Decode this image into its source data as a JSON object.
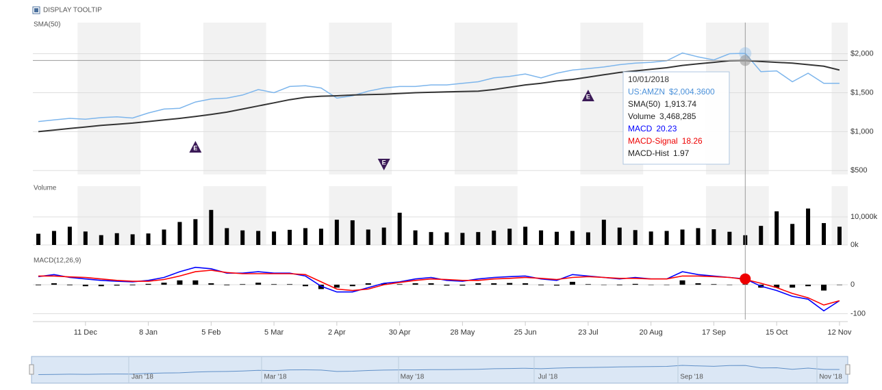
{
  "toolbar": {
    "checkbox_label": "DISPLAY TOOLTIP"
  },
  "chart_data": [
    {
      "type": "line",
      "title": "SMA(50)",
      "ylim": [
        450,
        2400
      ],
      "yticks": [
        {
          "value": 500,
          "label": "$500"
        },
        {
          "value": 1000,
          "label": "$1,000"
        },
        {
          "value": 1500,
          "label": "$1,500"
        },
        {
          "value": 2000,
          "label": "$2,000"
        }
      ],
      "grid": true,
      "annotations": [
        "E",
        "E",
        "E"
      ],
      "series": [
        {
          "name": "US:AMZN",
          "color": "#7cb5ec",
          "values": [
            1130,
            1150,
            1170,
            1160,
            1180,
            1190,
            1175,
            1240,
            1290,
            1300,
            1380,
            1420,
            1430,
            1470,
            1540,
            1500,
            1580,
            1590,
            1560,
            1430,
            1460,
            1520,
            1560,
            1580,
            1580,
            1600,
            1600,
            1620,
            1640,
            1690,
            1710,
            1740,
            1690,
            1750,
            1790,
            1810,
            1830,
            1860,
            1880,
            1890,
            1910,
            2010,
            1960,
            1920,
            2000,
            2004.36,
            1770,
            1780,
            1640,
            1750,
            1620,
            1620
          ]
        },
        {
          "name": "SMA(50)",
          "color": "#333333",
          "values": [
            1000,
            1020,
            1040,
            1060,
            1080,
            1095,
            1110,
            1130,
            1150,
            1170,
            1195,
            1220,
            1250,
            1290,
            1330,
            1370,
            1410,
            1440,
            1455,
            1460,
            1470,
            1475,
            1480,
            1490,
            1500,
            1505,
            1510,
            1515,
            1520,
            1540,
            1570,
            1600,
            1620,
            1650,
            1670,
            1700,
            1730,
            1760,
            1780,
            1800,
            1820,
            1850,
            1870,
            1890,
            1910,
            1913.74,
            1900,
            1890,
            1880,
            1860,
            1840,
            1790
          ]
        }
      ]
    },
    {
      "type": "bar",
      "title": "Volume",
      "ylim": [
        0,
        21000
      ],
      "yticks": [
        {
          "value": 0,
          "label": "0k"
        },
        {
          "value": 10000,
          "label": "10,000k"
        }
      ],
      "grid": true,
      "series": [
        {
          "name": "Volume",
          "color": "#000000",
          "values": [
            4000,
            5000,
            6500,
            4800,
            3500,
            4200,
            3800,
            4100,
            5500,
            8200,
            9200,
            12500,
            6000,
            5200,
            5000,
            4800,
            5400,
            6000,
            5800,
            9000,
            8800,
            5500,
            6200,
            11500,
            5200,
            4600,
            4500,
            4300,
            4600,
            5100,
            5800,
            6500,
            5200,
            4700,
            5000,
            4500,
            9000,
            6200,
            5300,
            4800,
            5000,
            5500,
            6000,
            5600,
            4700,
            3468.285,
            6800,
            12000,
            7500,
            13000,
            7800,
            6500
          ]
        }
      ]
    },
    {
      "type": "macd",
      "title": "MACD(12,26,9)",
      "ylim": [
        -120,
        90
      ],
      "yticks": [
        -100,
        0
      ],
      "grid": true,
      "categories": [
        null,
        null,
        null,
        "11 Dec",
        null,
        null,
        null,
        "8 Jan",
        null,
        null,
        null,
        "5 Feb",
        null,
        null,
        null,
        "5 Mar",
        null,
        null,
        null,
        "2 Apr",
        null,
        null,
        null,
        "30 Apr",
        null,
        null,
        null,
        "28 May",
        null,
        null,
        null,
        "25 Jun",
        null,
        null,
        null,
        "23 Jul",
        null,
        null,
        null,
        "20 Aug",
        null,
        null,
        null,
        "17 Sep",
        null,
        null,
        null,
        "15 Oct",
        null,
        null,
        null,
        "12 Nov"
      ],
      "series": [
        {
          "name": "MACD",
          "color": "#0000ff",
          "values": [
            28,
            35,
            25,
            20,
            15,
            12,
            10,
            15,
            25,
            45,
            60,
            55,
            40,
            40,
            45,
            40,
            40,
            30,
            -5,
            -25,
            -25,
            -10,
            5,
            10,
            20,
            25,
            15,
            12,
            20,
            25,
            28,
            30,
            20,
            15,
            35,
            30,
            25,
            20,
            25,
            20,
            20,
            45,
            35,
            30,
            25,
            20.23,
            -5,
            -20,
            -40,
            -50,
            -90,
            -55
          ]
        },
        {
          "name": "MACD-Signal",
          "color": "#ff0000",
          "values": [
            30,
            30,
            27,
            25,
            20,
            15,
            12,
            12,
            18,
            30,
            45,
            50,
            42,
            38,
            38,
            38,
            38,
            35,
            10,
            -15,
            -20,
            -15,
            0,
            8,
            15,
            20,
            18,
            15,
            15,
            20,
            22,
            25,
            22,
            18,
            25,
            28,
            25,
            22,
            22,
            20,
            20,
            30,
            30,
            28,
            25,
            18.26,
            5,
            -10,
            -30,
            -45,
            -70,
            -55
          ]
        },
        {
          "name": "MACD-Hist",
          "color": "#000000",
          "values": [
            -2,
            5,
            -2,
            -5,
            -5,
            -3,
            -2,
            3,
            7,
            15,
            15,
            5,
            -2,
            2,
            7,
            2,
            2,
            -5,
            -15,
            -10,
            -5,
            5,
            5,
            2,
            5,
            5,
            -3,
            -3,
            5,
            5,
            6,
            5,
            -2,
            -3,
            10,
            2,
            0,
            -2,
            3,
            0,
            0,
            15,
            5,
            2,
            0,
            1.97,
            -10,
            -10,
            -10,
            -5,
            -20,
            0
          ]
        }
      ]
    }
  ],
  "tooltip": {
    "date": "10/01/2018",
    "values": [
      "$2,004.3600",
      "1,913.74",
      "3,468,285",
      "20.23",
      "18.26",
      "1.97"
    ]
  },
  "navigator": {
    "labels": [
      "Jan '18",
      "Mar '18",
      "May '18",
      "Jul '18",
      "Sep '18",
      "Nov '18"
    ]
  }
}
